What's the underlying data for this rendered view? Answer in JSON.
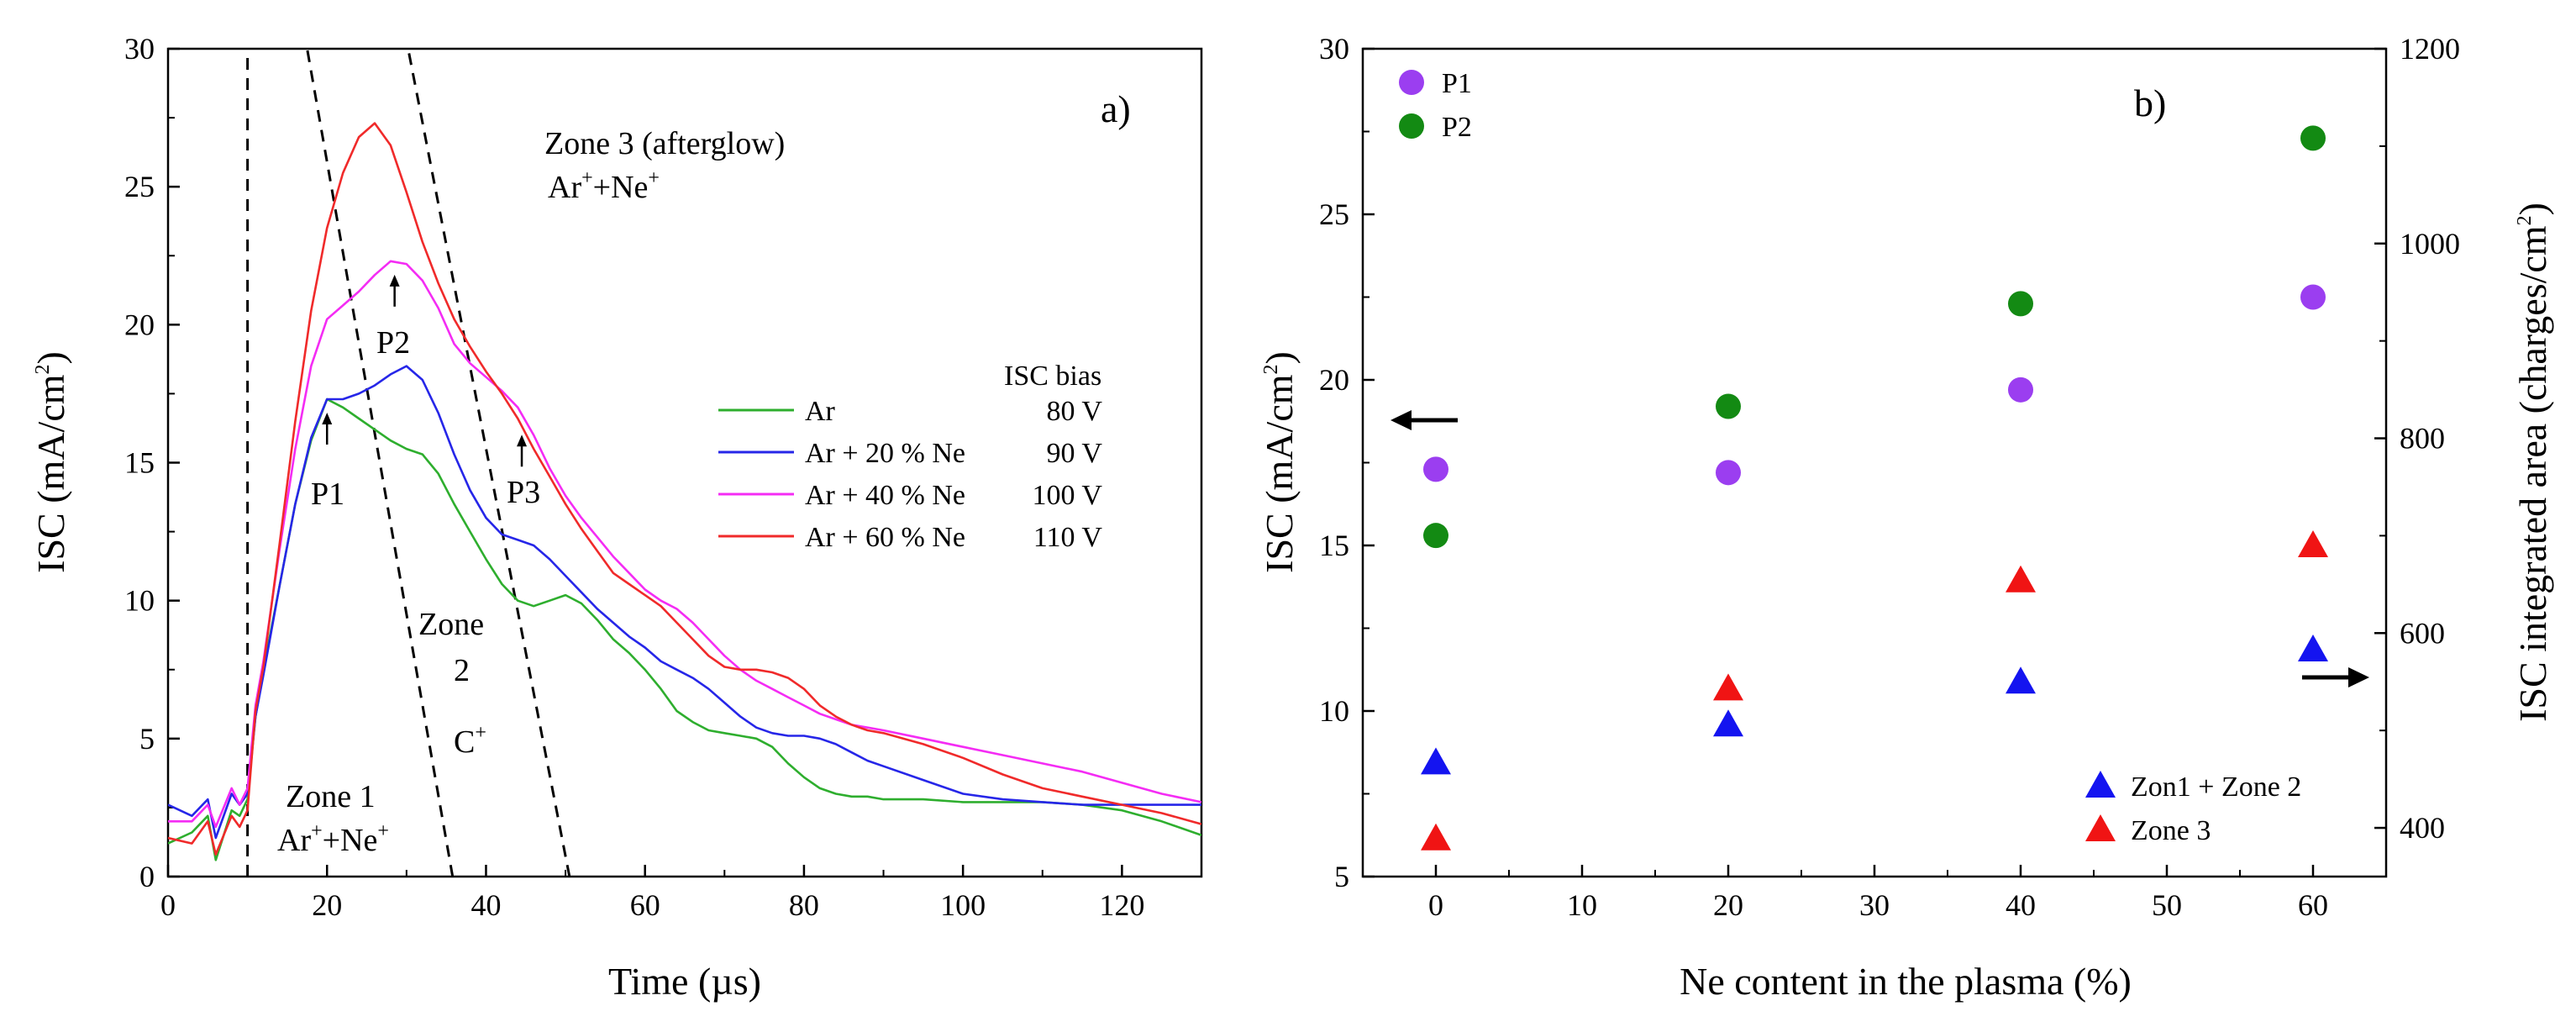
{
  "chart_data": [
    {
      "type": "line",
      "panel_label": "a)",
      "xlabel": "Time (µs)",
      "ylabel": "ISC  (mA/cm",
      "ylabel_sup": "2",
      "ylabel_end": ")",
      "xlim": [
        0,
        130
      ],
      "ylim": [
        0,
        30
      ],
      "xticks": [
        "0",
        "20",
        "40",
        "60",
        "80",
        "100",
        "120"
      ],
      "yticks": [
        "0",
        "5",
        "10",
        "15",
        "20",
        "25",
        "30"
      ],
      "legend_title": "ISC bias",
      "series": [
        {
          "name": "Ar",
          "bias": "80 V",
          "color": "#2eae2e",
          "x": [
            0,
            3,
            5,
            6,
            8,
            9,
            10,
            11,
            12,
            14,
            16,
            18,
            20,
            22,
            24,
            26,
            28,
            30,
            32,
            34,
            36,
            38,
            40,
            42,
            44,
            46,
            48,
            50,
            52,
            54,
            56,
            58,
            60,
            62,
            64,
            66,
            68,
            70,
            72,
            74,
            76,
            78,
            80,
            82,
            84,
            86,
            88,
            90,
            95,
            100,
            105,
            110,
            115,
            120,
            125,
            130
          ],
          "y": [
            1.2,
            1.6,
            2.2,
            0.6,
            2.4,
            2.2,
            2.8,
            5.8,
            7.5,
            10.5,
            13.5,
            15.8,
            17.3,
            17.0,
            16.6,
            16.2,
            15.8,
            15.5,
            15.3,
            14.6,
            13.5,
            12.5,
            11.5,
            10.6,
            10.0,
            9.8,
            10.0,
            10.2,
            9.9,
            9.3,
            8.6,
            8.1,
            7.5,
            6.8,
            6.0,
            5.6,
            5.3,
            5.2,
            5.1,
            5.0,
            4.7,
            4.1,
            3.6,
            3.2,
            3.0,
            2.9,
            2.9,
            2.8,
            2.8,
            2.7,
            2.7,
            2.7,
            2.6,
            2.4,
            2.0,
            1.5
          ]
        },
        {
          "name": "Ar + 20 % Ne",
          "bias": "90 V",
          "color": "#2626e8",
          "x": [
            0,
            3,
            5,
            6,
            8,
            9,
            10,
            11,
            12,
            14,
            16,
            18,
            20,
            22,
            24,
            26,
            28,
            30,
            32,
            34,
            36,
            38,
            40,
            42,
            44,
            46,
            48,
            50,
            52,
            54,
            56,
            58,
            60,
            62,
            64,
            66,
            68,
            70,
            72,
            74,
            76,
            78,
            80,
            82,
            84,
            86,
            88,
            90,
            95,
            100,
            105,
            110,
            115,
            120,
            125,
            130
          ],
          "y": [
            2.6,
            2.2,
            2.8,
            1.4,
            3.0,
            2.6,
            3.0,
            5.8,
            7.3,
            10.5,
            13.5,
            15.9,
            17.3,
            17.3,
            17.5,
            17.8,
            18.2,
            18.5,
            18.0,
            16.8,
            15.3,
            14.0,
            13.0,
            12.4,
            12.2,
            12.0,
            11.5,
            10.9,
            10.3,
            9.7,
            9.2,
            8.7,
            8.3,
            7.8,
            7.5,
            7.2,
            6.8,
            6.3,
            5.8,
            5.4,
            5.2,
            5.1,
            5.1,
            5.0,
            4.8,
            4.5,
            4.2,
            4.0,
            3.5,
            3.0,
            2.8,
            2.7,
            2.6,
            2.6,
            2.6,
            2.6
          ]
        },
        {
          "name": "Ar + 40 % Ne",
          "bias": "100 V",
          "color": "#f42cf4",
          "x": [
            0,
            3,
            5,
            6,
            8,
            9,
            10,
            11,
            12,
            14,
            16,
            18,
            20,
            22,
            24,
            26,
            28,
            30,
            32,
            34,
            36,
            38,
            40,
            42,
            44,
            46,
            48,
            50,
            52,
            54,
            56,
            58,
            60,
            62,
            64,
            66,
            68,
            70,
            72,
            74,
            76,
            78,
            80,
            82,
            84,
            86,
            88,
            90,
            95,
            100,
            105,
            110,
            115,
            120,
            125,
            130
          ],
          "y": [
            2.0,
            2.0,
            2.6,
            1.8,
            3.2,
            2.6,
            3.2,
            6.2,
            7.8,
            11.8,
            15.5,
            18.5,
            20.2,
            20.7,
            21.2,
            21.8,
            22.3,
            22.2,
            21.6,
            20.6,
            19.3,
            18.6,
            18.1,
            17.6,
            17.0,
            16.0,
            14.8,
            13.8,
            13.0,
            12.3,
            11.6,
            11.0,
            10.4,
            10.0,
            9.7,
            9.2,
            8.6,
            8.0,
            7.5,
            7.1,
            6.8,
            6.5,
            6.2,
            5.9,
            5.7,
            5.5,
            5.4,
            5.3,
            5.0,
            4.7,
            4.4,
            4.1,
            3.8,
            3.4,
            3.0,
            2.7
          ]
        },
        {
          "name": "Ar + 60 % Ne",
          "bias": "110 V",
          "color": "#f02a2a",
          "x": [
            0,
            3,
            5,
            6,
            8,
            9,
            10,
            11,
            12,
            14,
            16,
            18,
            20,
            22,
            24,
            26,
            28,
            30,
            32,
            34,
            36,
            38,
            40,
            42,
            44,
            46,
            48,
            50,
            52,
            54,
            56,
            58,
            60,
            62,
            64,
            66,
            68,
            70,
            72,
            74,
            76,
            78,
            80,
            82,
            84,
            86,
            88,
            90,
            95,
            100,
            105,
            110,
            115,
            120,
            125,
            130
          ],
          "y": [
            1.4,
            1.2,
            2.0,
            0.8,
            2.2,
            1.8,
            2.4,
            6.0,
            7.6,
            12.0,
            16.5,
            20.5,
            23.5,
            25.5,
            26.8,
            27.3,
            26.5,
            24.8,
            23.0,
            21.5,
            20.2,
            19.2,
            18.3,
            17.5,
            16.6,
            15.5,
            14.5,
            13.5,
            12.6,
            11.8,
            11.0,
            10.6,
            10.2,
            9.8,
            9.2,
            8.6,
            8.0,
            7.6,
            7.5,
            7.5,
            7.4,
            7.2,
            6.8,
            6.2,
            5.8,
            5.5,
            5.3,
            5.2,
            4.8,
            4.3,
            3.7,
            3.2,
            2.9,
            2.6,
            2.3,
            1.9
          ]
        }
      ],
      "annotations": {
        "zone3_line1": "Zone 3 (afterglow)",
        "zone3_ar": "Ar",
        "zone3_plus1": "+",
        "zone3_mid": "+Ne",
        "zone3_plus2": "+",
        "zone2_line1": "Zone",
        "zone2_line2": "2",
        "zone2_c": "C",
        "zone2_plus": "+",
        "zone1_line1": "Zone 1",
        "zone1_ar": "Ar",
        "zone1_plus1": "+",
        "zone1_mid": "+Ne",
        "zone1_plus2": "+",
        "p1": "P1",
        "p2": "P2",
        "p3": "P3"
      },
      "markers": [
        {
          "label": "P1",
          "x": 20,
          "y": 17.3
        },
        {
          "label": "P2",
          "x": 28.5,
          "y": 22.3
        },
        {
          "label": "P3",
          "x": 44.5,
          "y": 16.5
        }
      ],
      "boundaries": [
        {
          "from": [
            10,
            0
          ],
          "to": [
            10,
            30
          ]
        },
        {
          "from": [
            35.8,
            0
          ],
          "to": [
            17.5,
            30
          ]
        },
        {
          "from": [
            50.5,
            0
          ],
          "to": [
            30.2,
            30
          ]
        }
      ]
    },
    {
      "type": "scatter",
      "panel_label": "b)",
      "xlabel": "Ne content in the plasma (%)",
      "ylabel_left": "ISC  (mA/cm",
      "ylabel_left_sup": "2",
      "ylabel_left_end": ")",
      "ylabel_right": "ISC integrated area (charges/cm",
      "ylabel_right_sup": "2",
      "ylabel_right_end": ")",
      "xlim": [
        -5,
        65
      ],
      "ylim_left": [
        5,
        30
      ],
      "ylim_right": [
        350,
        1200
      ],
      "xticks": [
        "0",
        "10",
        "20",
        "30",
        "40",
        "50",
        "60"
      ],
      "yticks_left": [
        "5",
        "10",
        "15",
        "20",
        "25",
        "30"
      ],
      "yticks_right": [
        "400",
        "600",
        "800",
        "1000",
        "1200"
      ],
      "series": [
        {
          "name": "P1",
          "axis": "left",
          "marker": "circle",
          "color": "#9b3ef0",
          "x": [
            0,
            20,
            40,
            60
          ],
          "y": [
            17.3,
            17.2,
            19.7,
            22.5
          ]
        },
        {
          "name": "P2",
          "axis": "left",
          "marker": "circle",
          "color": "#138a13",
          "x": [
            0,
            20,
            40,
            60
          ],
          "y": [
            15.3,
            19.2,
            22.3,
            27.3
          ]
        },
        {
          "name": "Zon1 + Zone 2",
          "axis": "right",
          "marker": "triangle",
          "color": "#1414f0",
          "x": [
            0,
            20,
            40,
            60
          ],
          "y": [
            467,
            506,
            550,
            583
          ]
        },
        {
          "name": "Zone 3",
          "axis": "right",
          "marker": "triangle",
          "color": "#f01414",
          "x": [
            0,
            20,
            40,
            60
          ],
          "y": [
            389,
            543,
            654,
            690
          ]
        }
      ]
    }
  ]
}
